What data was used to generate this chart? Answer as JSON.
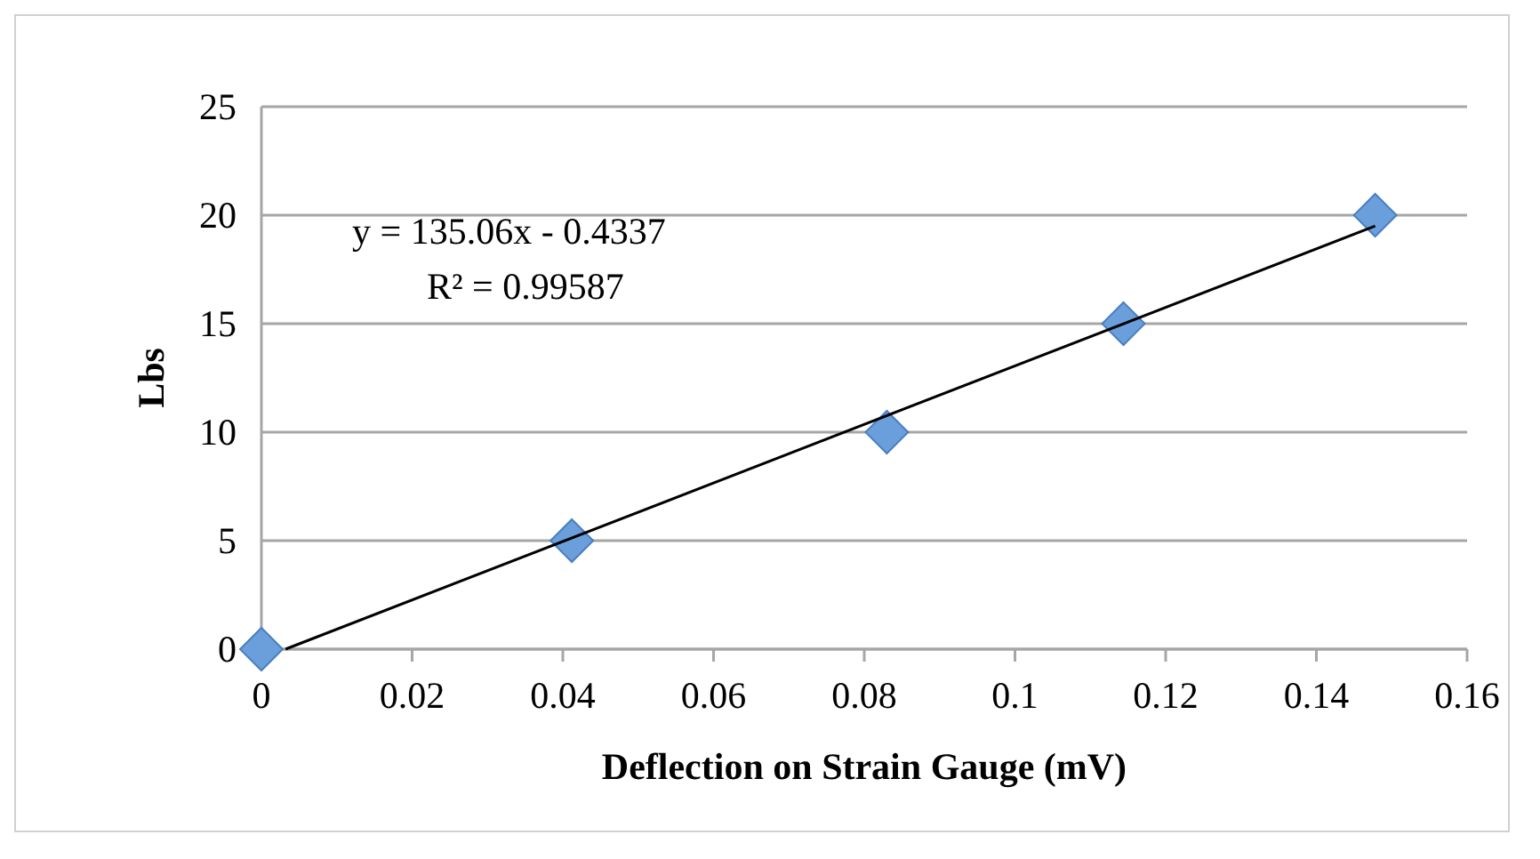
{
  "chart_data": {
    "type": "scatter",
    "xlabel": "Deflection on Strain Gauge (mV)",
    "ylabel": "Lbs",
    "series": [
      {
        "color": "#6a9fdb",
        "marker": "diamond",
        "x": [
          0,
          0.0412,
          0.083,
          0.1144,
          0.1478
        ],
        "values": [
          0,
          5,
          10,
          15,
          20
        ]
      },
      {
        "type": "line",
        "color": "#000000",
        "marker": "none",
        "x": [
          0.0032,
          0.1478
        ],
        "values": [
          0,
          19.5
        ]
      }
    ],
    "annotations": [
      "y = 135.06x - 0.4337",
      "R² = 0.99587"
    ],
    "xlim": [
      0,
      0.16
    ],
    "xticks": [
      0,
      0.02,
      0.04,
      0.06,
      0.08,
      0.1,
      0.12,
      0.14,
      0.16
    ],
    "ylim": [
      0,
      25
    ],
    "yticks": [
      0,
      5,
      10,
      15,
      20,
      25
    ],
    "grid": "y"
  }
}
